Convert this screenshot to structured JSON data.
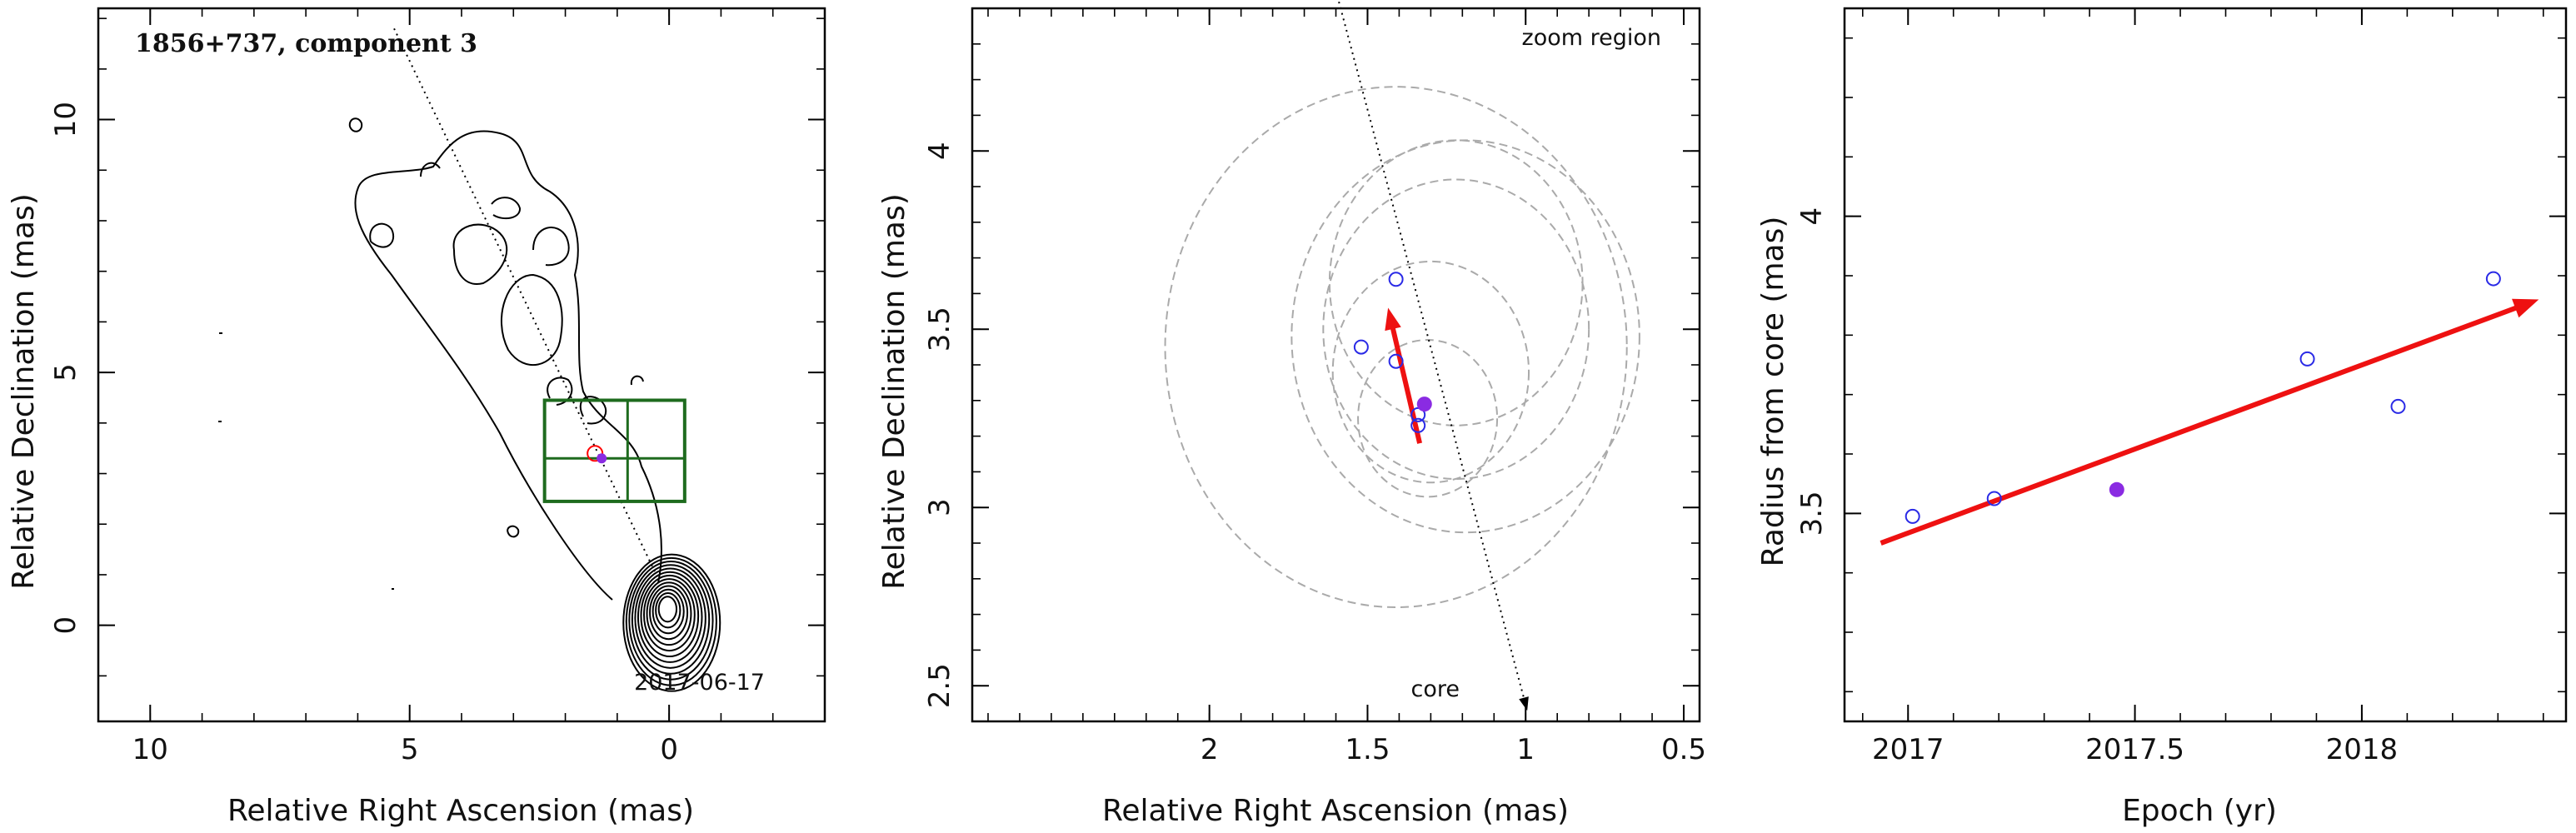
{
  "chart_data": [
    {
      "type": "contour",
      "title": "1856+737, component 3",
      "xlabel": "Relative Right Ascension (mas)",
      "ylabel": "Relative Declination (mas)",
      "xlim": [
        11,
        -3
      ],
      "ylim": [
        -1.9,
        12.2
      ],
      "xticks": [
        10,
        5,
        0
      ],
      "yticks": [
        0,
        5,
        10
      ],
      "epoch_label": "2017-06-17",
      "jet_axis_line": [
        [
          5.3,
          11.8
        ],
        [
          0.2,
          0.9
        ]
      ],
      "zoom_box": {
        "x_range": [
          -0.3,
          2.4
        ],
        "y_range": [
          2.45,
          4.45
        ]
      },
      "component": {
        "x": 1.3,
        "y": 3.3
      },
      "colors": {
        "contours": "#000000",
        "zoom_box": "#1e6b1e",
        "component": "#ff0000",
        "marker": "#8a2be2"
      }
    },
    {
      "type": "scatter",
      "title": "",
      "annotation": "zoom region",
      "core_label": "core",
      "xlabel": "Relative Right Ascension (mas)",
      "ylabel": "Relative Declination (mas)",
      "xlim": [
        2.75,
        0.45
      ],
      "ylim": [
        2.4,
        4.4
      ],
      "xticks": [
        2,
        1.5,
        1,
        0.5
      ],
      "yticks": [
        2.5,
        3,
        3.5,
        4
      ],
      "points_open": [
        [
          1.52,
          3.45
        ],
        [
          1.41,
          3.64
        ],
        [
          1.41,
          3.41
        ],
        [
          1.34,
          3.23
        ],
        [
          1.34,
          3.26
        ]
      ],
      "point_filled": [
        1.32,
        3.29
      ],
      "circles": [
        {
          "x": 1.31,
          "y": 3.25,
          "r": 0.22
        },
        {
          "x": 1.3,
          "y": 3.38,
          "r": 0.31
        },
        {
          "x": 1.22,
          "y": 3.5,
          "r": 0.42
        },
        {
          "x": 1.19,
          "y": 3.48,
          "r": 0.55
        },
        {
          "x": 1.22,
          "y": 3.63,
          "r": 0.4
        },
        {
          "x": 1.41,
          "y": 3.45,
          "r": 0.73
        }
      ],
      "proper_motion_arrow": {
        "from": [
          1.335,
          3.18
        ],
        "to": [
          1.435,
          3.56
        ]
      },
      "jet_axis_arrow": {
        "from": [
          1.6,
          4.45
        ],
        "to": [
          0.995,
          2.43
        ]
      },
      "colors": {
        "points": "#2a2ae6",
        "filled": "#8a2be2",
        "circles": "#aaaaaa",
        "arrow": "#ee1111"
      }
    },
    {
      "type": "scatter",
      "title": "",
      "xlabel": "Epoch (yr)",
      "ylabel": "Radius from core (mas)",
      "xlim": [
        2016.86,
        2018.45
      ],
      "ylim": [
        3.15,
        4.35
      ],
      "xticks": [
        2017,
        2017.5,
        2018
      ],
      "yticks": [
        3.5,
        4
      ],
      "points_open": [
        [
          2017.01,
          3.495
        ],
        [
          2017.19,
          3.525
        ],
        [
          2017.88,
          3.76
        ],
        [
          2018.08,
          3.68
        ],
        [
          2018.29,
          3.895
        ]
      ],
      "point_filled": [
        2017.46,
        3.54
      ],
      "fit_arrow": {
        "from": [
          2016.94,
          3.45
        ],
        "to": [
          2018.39,
          3.86
        ]
      },
      "colors": {
        "points": "#2a2ae6",
        "filled": "#8a2be2",
        "arrow": "#ee1111"
      }
    }
  ]
}
